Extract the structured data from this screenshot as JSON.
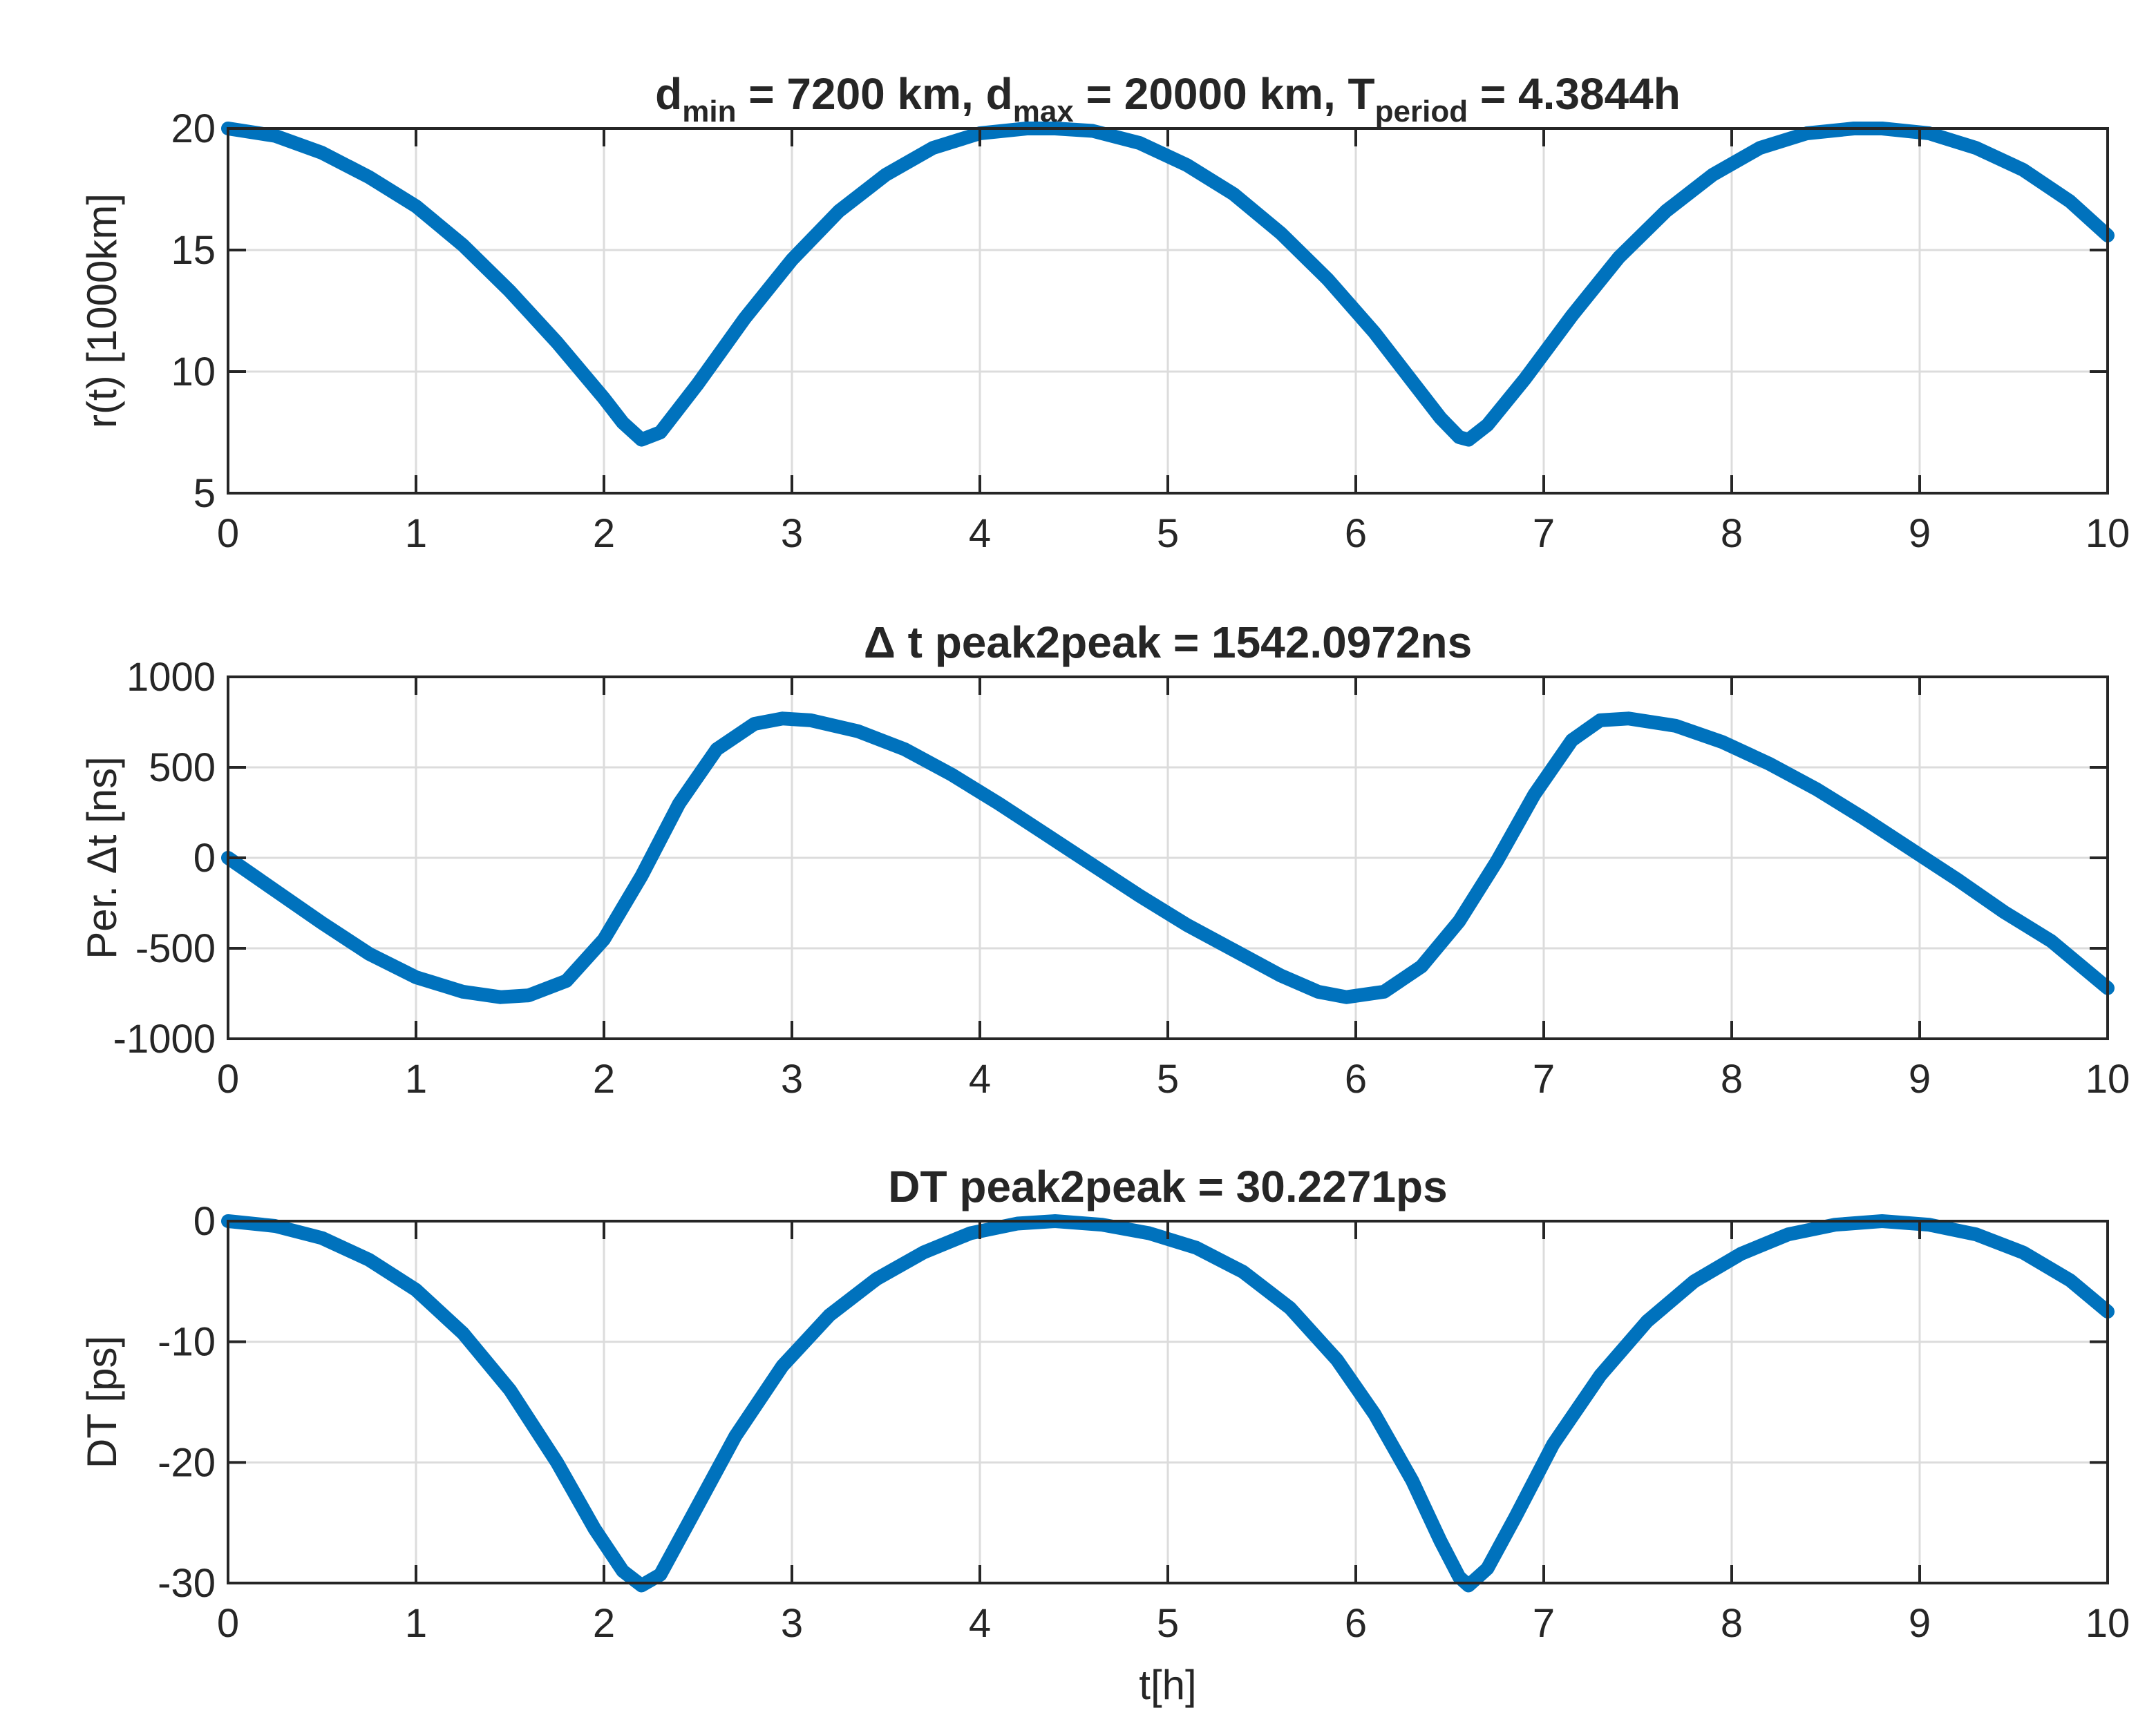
{
  "colors": {
    "series": "#0072bd",
    "axis": "#262626",
    "grid": "#dcdcdc"
  },
  "chart_data": [
    {
      "type": "line",
      "title": "d",
      "title_parts": [
        {
          "text": "d",
          "sub": false
        },
        {
          "text": "min",
          "sub": true
        },
        {
          "text": " = 7200 km, d",
          "sub": false
        },
        {
          "text": "max",
          "sub": true
        },
        {
          "text": " = 20000 km, T",
          "sub": false
        },
        {
          "text": "period",
          "sub": true
        },
        {
          "text": " = 4.3844h",
          "sub": false
        }
      ],
      "xlabel": "",
      "ylabel": "r(t) [1000km]",
      "xlim": [
        0,
        10
      ],
      "ylim": [
        5,
        20
      ],
      "xticks": [
        0,
        1,
        2,
        3,
        4,
        5,
        6,
        7,
        8,
        9,
        10
      ],
      "yticks": [
        5,
        10,
        15,
        20
      ],
      "grid": true,
      "series": [
        {
          "x": [
            0,
            0.25,
            0.5,
            0.75,
            1,
            1.25,
            1.5,
            1.75,
            2,
            2.1,
            2.2,
            2.3,
            2.5,
            2.75,
            3,
            3.25,
            3.5,
            3.75,
            4,
            4.25,
            4.4,
            4.6,
            4.85,
            5.1,
            5.35,
            5.6,
            5.85,
            6.1,
            6.3,
            6.45,
            6.55,
            6.6,
            6.7,
            6.9,
            7.15,
            7.4,
            7.65,
            7.9,
            8.15,
            8.4,
            8.65,
            8.8,
            9.05,
            9.3,
            9.55,
            9.8,
            10
          ],
          "y": [
            20,
            19.7,
            19,
            18,
            16.8,
            15.2,
            13.3,
            11.2,
            8.9,
            7.9,
            7.2,
            7.5,
            9.5,
            12.2,
            14.6,
            16.6,
            18.1,
            19.2,
            19.8,
            20,
            20,
            19.9,
            19.4,
            18.5,
            17.3,
            15.7,
            13.8,
            11.6,
            9.6,
            8.1,
            7.3,
            7.2,
            7.8,
            9.7,
            12.3,
            14.7,
            16.6,
            18.1,
            19.2,
            19.8,
            20,
            20,
            19.8,
            19.2,
            18.3,
            17.0,
            15.6
          ]
        }
      ]
    },
    {
      "type": "line",
      "title": "Δ t peak2peak = 1542.0972ns",
      "xlabel": "",
      "ylabel": "Per. Δt [ns]",
      "xlim": [
        0,
        10
      ],
      "ylim": [
        -1000,
        1000
      ],
      "xticks": [
        0,
        1,
        2,
        3,
        4,
        5,
        6,
        7,
        8,
        9,
        10
      ],
      "yticks": [
        -1000,
        -500,
        0,
        500,
        1000
      ],
      "grid": true,
      "series": [
        {
          "x": [
            0,
            0.25,
            0.5,
            0.75,
            1,
            1.25,
            1.45,
            1.6,
            1.8,
            2,
            2.2,
            2.4,
            2.6,
            2.8,
            2.95,
            3.1,
            3.35,
            3.6,
            3.85,
            4.1,
            4.35,
            4.6,
            4.85,
            5.1,
            5.35,
            5.6,
            5.8,
            5.95,
            6.15,
            6.35,
            6.55,
            6.75,
            6.95,
            7.15,
            7.3,
            7.45,
            7.7,
            7.95,
            8.2,
            8.45,
            8.7,
            8.95,
            9.2,
            9.45,
            9.7,
            10
          ],
          "y": [
            0,
            -180,
            -360,
            -530,
            -660,
            -740,
            -770,
            -760,
            -680,
            -450,
            -100,
            300,
            600,
            740,
            770,
            760,
            700,
            600,
            460,
            300,
            130,
            -40,
            -210,
            -370,
            -510,
            -650,
            -740,
            -770,
            -740,
            -600,
            -350,
            -20,
            350,
            650,
            760,
            770,
            730,
            640,
            520,
            380,
            220,
            50,
            -120,
            -300,
            -460,
            -720
          ]
        }
      ]
    },
    {
      "type": "line",
      "title": "DT peak2peak = 30.2271ps",
      "xlabel": "t[h]",
      "ylabel": "DT [ps]",
      "xlim": [
        0,
        10
      ],
      "ylim": [
        -30,
        0
      ],
      "xticks": [
        0,
        1,
        2,
        3,
        4,
        5,
        6,
        7,
        8,
        9,
        10
      ],
      "yticks": [
        -30,
        -20,
        -10,
        0
      ],
      "grid": true,
      "series": [
        {
          "x": [
            0,
            0.25,
            0.5,
            0.75,
            1,
            1.25,
            1.5,
            1.75,
            1.95,
            2.1,
            2.2,
            2.3,
            2.45,
            2.7,
            2.95,
            3.2,
            3.45,
            3.7,
            3.95,
            4.2,
            4.4,
            4.65,
            4.9,
            5.15,
            5.4,
            5.65,
            5.9,
            6.1,
            6.3,
            6.45,
            6.55,
            6.6,
            6.7,
            6.85,
            7.05,
            7.3,
            7.55,
            7.8,
            8.05,
            8.3,
            8.55,
            8.8,
            9.05,
            9.3,
            9.55,
            9.8,
            10
          ],
          "y": [
            0,
            -0.4,
            -1.4,
            -3.2,
            -5.7,
            -9.3,
            -14,
            -20,
            -25.5,
            -29,
            -30.2,
            -29.3,
            -25,
            -17.8,
            -12,
            -7.8,
            -4.8,
            -2.6,
            -1.0,
            -0.2,
            0,
            -0.3,
            -1.0,
            -2.2,
            -4.2,
            -7.2,
            -11.5,
            -16.0,
            -21.5,
            -26.5,
            -29.5,
            -30.2,
            -28.8,
            -24.5,
            -18.5,
            -12.8,
            -8.3,
            -5.0,
            -2.7,
            -1.1,
            -0.3,
            0,
            -0.3,
            -1.1,
            -2.6,
            -4.9,
            -7.5
          ]
        }
      ]
    }
  ]
}
